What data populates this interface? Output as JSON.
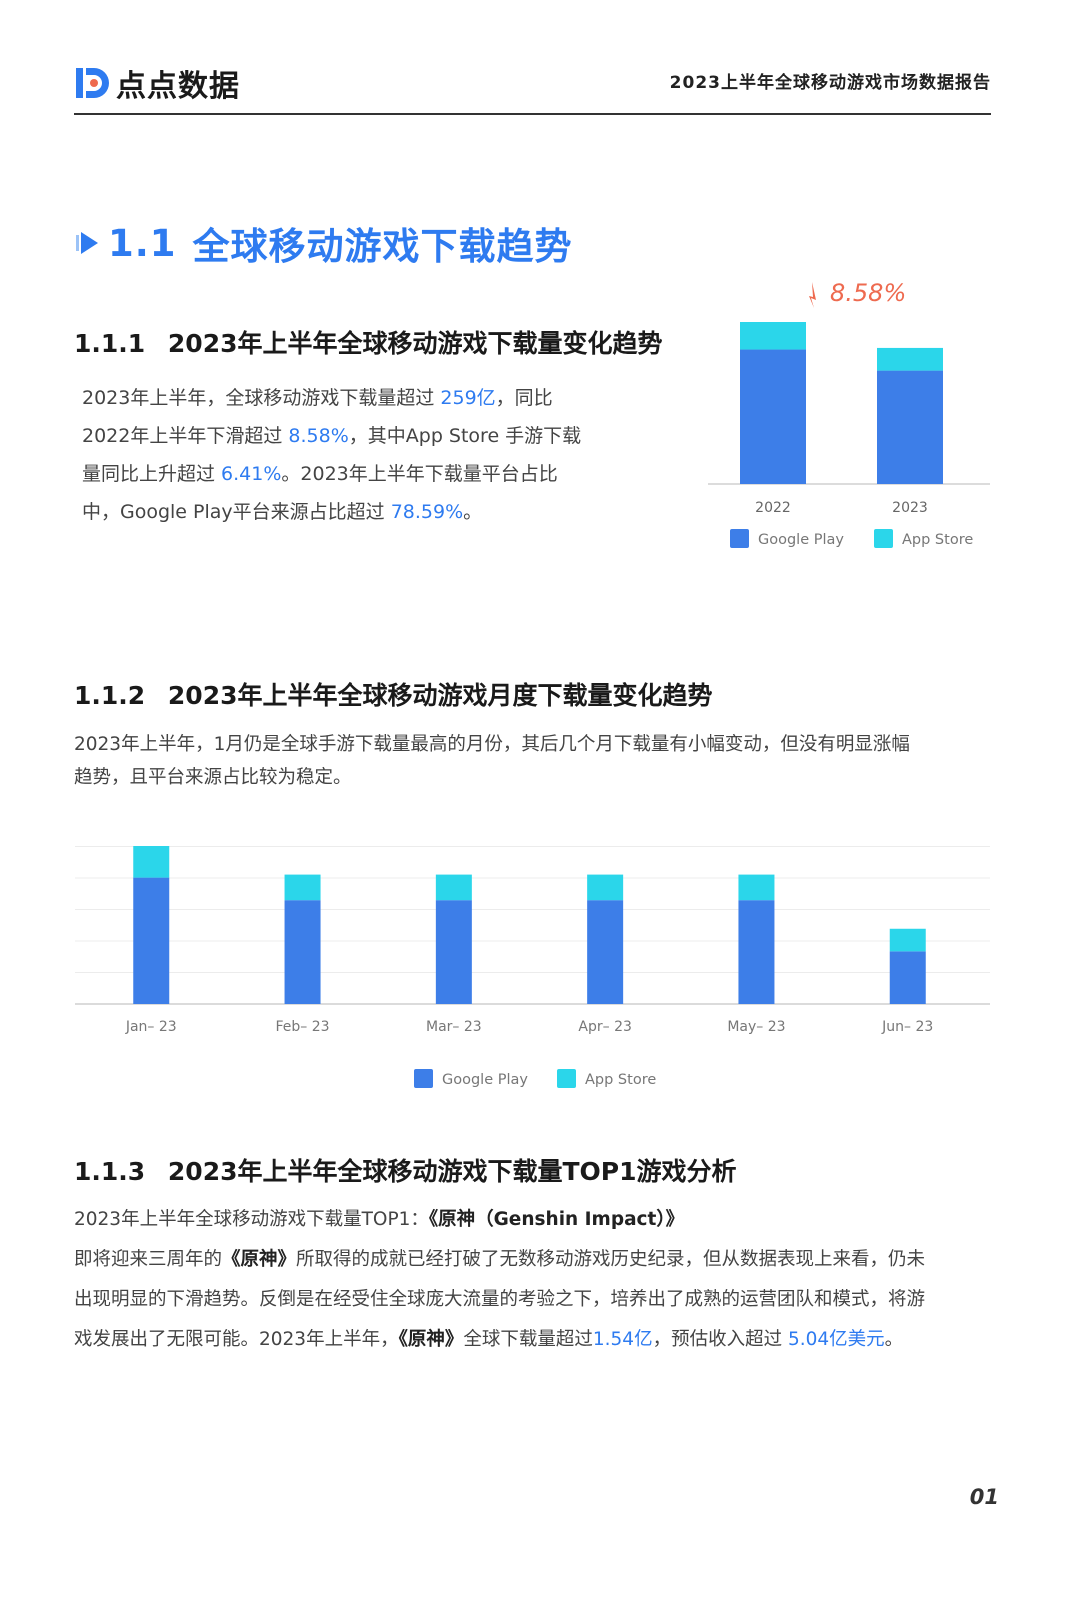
{
  "header": {
    "logo_text": "点点数据",
    "report_title": "2023上半年全球移动游戏市场数据报告"
  },
  "section": {
    "number": "1.1",
    "title": "全球移动游戏下载趋势"
  },
  "s111": {
    "number": "1.1.1",
    "title": "2023年上半年全球移动游戏下载量变化趋势",
    "lines": [
      [
        "2023年上半年，全球移动游戏下载量超过 ",
        {
          "hl": "259亿"
        },
        "，同比"
      ],
      [
        "2022年上半年下滑超过 ",
        {
          "hl": "8.58%"
        },
        "，其中App Store 手游下载"
      ],
      [
        "量同比上升超过 ",
        {
          "hl": "6.41%"
        },
        "。2023年上半年下载量平台占比"
      ],
      [
        "中，Google Play平台来源占比超过 ",
        {
          "hl": "78.59%"
        },
        "。"
      ]
    ]
  },
  "s112": {
    "number": "1.1.2",
    "title": "2023年上半年全球移动游戏月度下载量变化趋势",
    "lines": [
      "2023年上半年，1月仍是全球手游下载量最高的月份，其后几个月下载量有小幅变动，但没有明显涨幅",
      "趋势，且平台来源占比较为稳定。"
    ]
  },
  "s113": {
    "number": "1.1.3",
    "title": "2023年上半年全球移动游戏下载量TOP1游戏分析",
    "lines": [
      [
        "2023年上半年全球移动游戏下载量TOP1：",
        {
          "b": "《原神（Genshin Impact）》"
        }
      ],
      [
        "即将迎来三周年的",
        {
          "b": "《原神》"
        },
        "所取得的成就已经打破了无数移动游戏历史纪录，但从数据表现上来看，仍未"
      ],
      [
        "出现明显的下滑趋势。反倒是在经受住全球庞大流量的考验之下，培养出了成熟的运营团队和模式，将游"
      ],
      [
        "戏发展出了无限可能。2023年上半年，",
        {
          "b": "《原神》"
        },
        "全球下载量超过",
        {
          "hl": "1.54亿"
        },
        "，预估收入超过 ",
        {
          "hl": "5.04亿美元"
        },
        "。"
      ]
    ]
  },
  "colors": {
    "google_play": "#3d7ee8",
    "app_store": "#2bd6ea",
    "accent": "#2e7bf0",
    "decline": "#ee6a4f"
  },
  "chart_data": [
    {
      "type": "bar",
      "stacked": true,
      "categories": [
        "2022",
        "2023"
      ],
      "series": [
        {
          "name": "Google Play",
          "values": [
            0.83,
            0.7
          ]
        },
        {
          "name": "App Store",
          "values": [
            0.17,
            0.14
          ]
        }
      ],
      "annotation": "8.58%",
      "legend": "bottom",
      "ylim": [
        0,
        1
      ]
    },
    {
      "type": "bar",
      "stacked": true,
      "categories": [
        "Jan– 23",
        "Feb– 23",
        "Mar– 23",
        "Apr– 23",
        "May– 23",
        "Jun– 23"
      ],
      "series": [
        {
          "name": "Google Play",
          "values": [
            4.2,
            3.45,
            3.45,
            3.45,
            3.45,
            1.75
          ]
        },
        {
          "name": "App Store",
          "values": [
            1.05,
            0.85,
            0.85,
            0.85,
            0.85,
            0.75
          ]
        }
      ],
      "legend": "bottom",
      "ylim": [
        0,
        5.25
      ],
      "grid": true
    }
  ],
  "page_number": "01"
}
